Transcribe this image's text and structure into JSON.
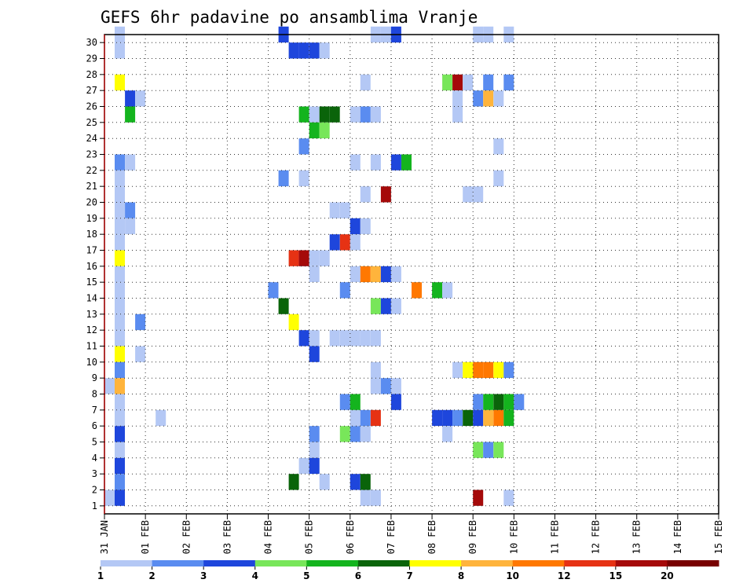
{
  "chart_data": {
    "type": "heatmap",
    "title": "GEFS 6hr padavine po ansamblima Vranje",
    "x_ticks": [
      "31 JAN",
      "01 FEB",
      "02 FEB",
      "03 FEB",
      "04 FEB",
      "05 FEB",
      "06 FEB",
      "07 FEB",
      "08 FEB",
      "09 FEB",
      "10 FEB",
      "11 FEB",
      "12 FEB",
      "13 FEB",
      "14 FEB",
      "15 FEB"
    ],
    "y_ticks": [
      "1",
      "2",
      "3",
      "4",
      "5",
      "6",
      "7",
      "8",
      "9",
      "10",
      "11",
      "12",
      "13",
      "14",
      "15",
      "16",
      "17",
      "18",
      "19",
      "20",
      "21",
      "22",
      "23",
      "24",
      "25",
      "26",
      "27",
      "28",
      "29",
      "30"
    ],
    "x_unit": "6-hour step",
    "xlim": [
      0,
      60
    ],
    "ylim": [
      0,
      30
    ],
    "grid": true,
    "colorbar": {
      "labels": [
        "1",
        "2",
        "3",
        "4",
        "5",
        "6",
        "7",
        "8",
        "10",
        "12",
        "15",
        "20"
      ],
      "colors": [
        "#b4c8f5",
        "#5a8cf0",
        "#1e46dc",
        "#78e65a",
        "#14b41e",
        "#0a640a",
        "#ffff00",
        "#ffb43c",
        "#ff7800",
        "#e63214",
        "#a50a0a",
        "#780000"
      ]
    },
    "cells": [
      [
        1,
        30,
        1
      ],
      [
        1,
        29,
        1
      ],
      [
        1,
        27,
        7
      ],
      [
        2,
        26,
        3
      ],
      [
        3,
        26,
        1
      ],
      [
        2,
        25,
        5
      ],
      [
        1,
        22,
        2
      ],
      [
        2,
        22,
        1
      ],
      [
        1,
        21,
        1
      ],
      [
        1,
        20,
        1
      ],
      [
        1,
        19,
        1
      ],
      [
        2,
        19,
        2
      ],
      [
        1,
        18,
        1
      ],
      [
        2,
        18,
        1
      ],
      [
        1,
        17,
        1
      ],
      [
        1,
        16,
        7
      ],
      [
        1,
        15,
        1
      ],
      [
        1,
        14,
        1
      ],
      [
        1,
        12,
        1
      ],
      [
        1,
        13,
        1
      ],
      [
        3,
        12,
        2
      ],
      [
        1,
        11,
        1
      ],
      [
        1,
        10,
        7
      ],
      [
        3,
        10,
        1
      ],
      [
        1,
        9,
        2
      ],
      [
        0,
        8,
        1
      ],
      [
        1,
        8,
        8
      ],
      [
        1,
        7,
        1
      ],
      [
        1,
        6,
        1
      ],
      [
        5,
        6,
        1
      ],
      [
        1,
        5,
        3
      ],
      [
        1,
        4,
        1
      ],
      [
        1,
        3,
        3
      ],
      [
        1,
        2,
        2
      ],
      [
        0,
        1,
        1
      ],
      [
        1,
        1,
        3
      ],
      [
        17,
        30,
        3
      ],
      [
        18,
        29,
        3
      ],
      [
        19,
        29,
        3
      ],
      [
        20,
        29,
        3
      ],
      [
        21,
        29,
        1
      ],
      [
        19,
        25,
        5
      ],
      [
        20,
        25,
        1
      ],
      [
        21,
        25,
        6
      ],
      [
        22,
        25,
        6
      ],
      [
        20,
        24,
        5
      ],
      [
        21,
        24,
        4
      ],
      [
        19,
        23,
        2
      ],
      [
        17,
        21,
        2
      ],
      [
        19,
        21,
        1
      ],
      [
        19,
        16,
        2
      ],
      [
        18,
        16,
        10
      ],
      [
        19,
        16,
        11
      ],
      [
        20,
        16,
        1
      ],
      [
        21,
        16,
        1
      ],
      [
        20,
        15,
        1
      ],
      [
        16,
        14,
        2
      ],
      [
        17,
        13,
        6
      ],
      [
        18,
        12,
        7
      ],
      [
        19,
        11,
        3
      ],
      [
        20,
        11,
        1
      ],
      [
        20,
        10,
        3
      ],
      [
        20,
        5,
        2
      ],
      [
        20,
        4,
        1
      ],
      [
        19,
        3,
        1
      ],
      [
        20,
        3,
        1
      ],
      [
        20,
        3,
        3
      ],
      [
        18,
        2,
        6
      ],
      [
        21,
        2,
        1
      ],
      [
        24,
        2,
        3
      ],
      [
        25,
        2,
        6
      ],
      [
        25,
        1,
        1
      ],
      [
        24,
        0,
        1
      ],
      [
        25,
        0,
        1
      ],
      [
        26,
        1,
        1
      ],
      [
        25,
        5,
        1
      ],
      [
        23,
        5,
        4
      ],
      [
        24,
        5,
        2
      ],
      [
        25,
        5,
        1
      ],
      [
        24,
        6,
        1
      ],
      [
        25,
        6,
        2
      ],
      [
        26,
        6,
        10
      ],
      [
        23,
        7,
        2
      ],
      [
        24,
        7,
        5
      ],
      [
        26,
        8,
        1
      ],
      [
        27,
        8,
        2
      ],
      [
        28,
        8,
        1
      ],
      [
        28,
        7,
        3
      ],
      [
        26,
        9,
        1
      ],
      [
        26,
        8,
        1
      ],
      [
        22,
        11,
        1
      ],
      [
        23,
        11,
        1
      ],
      [
        24,
        11,
        1
      ],
      [
        25,
        11,
        1
      ],
      [
        26,
        11,
        1
      ],
      [
        23,
        14,
        2
      ],
      [
        24,
        15,
        1
      ],
      [
        25,
        15,
        9
      ],
      [
        26,
        15,
        8
      ],
      [
        27,
        15,
        3
      ],
      [
        28,
        15,
        1
      ],
      [
        26,
        13,
        4
      ],
      [
        27,
        13,
        3
      ],
      [
        28,
        13,
        1
      ],
      [
        22,
        17,
        3
      ],
      [
        23,
        17,
        10
      ],
      [
        24,
        17,
        1
      ],
      [
        24,
        18,
        3
      ],
      [
        25,
        18,
        1
      ],
      [
        22,
        19,
        1
      ],
      [
        23,
        19,
        1
      ],
      [
        25,
        20,
        1
      ],
      [
        27,
        20,
        11
      ],
      [
        26,
        22,
        1
      ],
      [
        28,
        22,
        3
      ],
      [
        29,
        22,
        5
      ],
      [
        24,
        22,
        1
      ],
      [
        26,
        25,
        1
      ],
      [
        24,
        25,
        1
      ],
      [
        25,
        25,
        2
      ],
      [
        25,
        27,
        1
      ],
      [
        26,
        30,
        1
      ],
      [
        27,
        30,
        1
      ],
      [
        28,
        30,
        3
      ],
      [
        30,
        14,
        9
      ],
      [
        32,
        14,
        5
      ],
      [
        33,
        14,
        1
      ],
      [
        32,
        6,
        3
      ],
      [
        33,
        6,
        3
      ],
      [
        34,
        6,
        2
      ],
      [
        35,
        6,
        6
      ],
      [
        36,
        6,
        3
      ],
      [
        37,
        6,
        8
      ],
      [
        38,
        6,
        9
      ],
      [
        39,
        6,
        5
      ],
      [
        33,
        5,
        1
      ],
      [
        36,
        7,
        2
      ],
      [
        37,
        7,
        5
      ],
      [
        38,
        7,
        6
      ],
      [
        39,
        7,
        5
      ],
      [
        40,
        7,
        2
      ],
      [
        34,
        9,
        1
      ],
      [
        35,
        9,
        7
      ],
      [
        36,
        9,
        9
      ],
      [
        37,
        9,
        9
      ],
      [
        38,
        9,
        7
      ],
      [
        39,
        9,
        2
      ],
      [
        36,
        4,
        4
      ],
      [
        37,
        4,
        2
      ],
      [
        38,
        4,
        4
      ],
      [
        36,
        1,
        11
      ],
      [
        39,
        1,
        1
      ],
      [
        33,
        27,
        4
      ],
      [
        34,
        27,
        11
      ],
      [
        35,
        27,
        1
      ],
      [
        37,
        27,
        2
      ],
      [
        39,
        27,
        2
      ],
      [
        34,
        26,
        1
      ],
      [
        36,
        26,
        2
      ],
      [
        37,
        26,
        8
      ],
      [
        38,
        26,
        1
      ],
      [
        34,
        25,
        1
      ],
      [
        35,
        20,
        1
      ],
      [
        36,
        20,
        1
      ],
      [
        38,
        23,
        1
      ],
      [
        38,
        21,
        1
      ],
      [
        36,
        30,
        1
      ],
      [
        37,
        30,
        1
      ],
      [
        39,
        30,
        1
      ]
    ]
  }
}
